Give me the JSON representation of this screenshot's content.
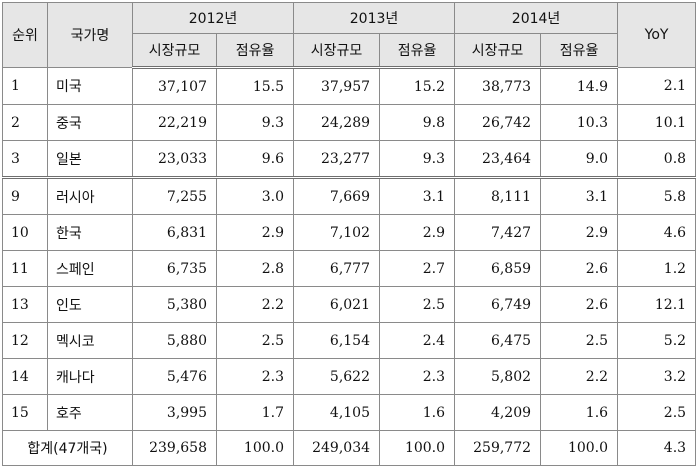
{
  "headers": {
    "rank": "순위",
    "country": "국가명",
    "years": [
      "2012년",
      "2013년",
      "2014년"
    ],
    "market_size": "시장규모",
    "share": "점유율",
    "yoy": "YoY"
  },
  "rows": [
    {
      "rank": "1",
      "country": "미국",
      "v2012": "37,107",
      "s2012": "15.5",
      "v2013": "37,957",
      "s2013": "15.2",
      "v2014": "38,773",
      "s2014": "14.9",
      "yoy": "2.1"
    },
    {
      "rank": "2",
      "country": "중국",
      "v2012": "22,219",
      "s2012": "9.3",
      "v2013": "24,289",
      "s2013": "9.8",
      "v2014": "26,742",
      "s2014": "10.3",
      "yoy": "10.1"
    },
    {
      "rank": "3",
      "country": "일본",
      "v2012": "23,033",
      "s2012": "9.6",
      "v2013": "23,277",
      "s2013": "9.3",
      "v2014": "23,464",
      "s2014": "9.0",
      "yoy": "0.8"
    },
    {
      "rank": "9",
      "country": "러시아",
      "v2012": "7,255",
      "s2012": "3.0",
      "v2013": "7,669",
      "s2013": "3.1",
      "v2014": "8,111",
      "s2014": "3.1",
      "yoy": "5.8"
    },
    {
      "rank": "10",
      "country": "한국",
      "v2012": "6,831",
      "s2012": "2.9",
      "v2013": "7,102",
      "s2013": "2.9",
      "v2014": "7,427",
      "s2014": "2.9",
      "yoy": "4.6"
    },
    {
      "rank": "11",
      "country": "스페인",
      "v2012": "6,735",
      "s2012": "2.8",
      "v2013": "6,777",
      "s2013": "2.7",
      "v2014": "6,859",
      "s2014": "2.6",
      "yoy": "1.2"
    },
    {
      "rank": "13",
      "country": "인도",
      "v2012": "5,380",
      "s2012": "2.2",
      "v2013": "6,021",
      "s2013": "2.5",
      "v2014": "6,749",
      "s2014": "2.6",
      "yoy": "12.1"
    },
    {
      "rank": "12",
      "country": "멕시코",
      "v2012": "5,880",
      "s2012": "2.5",
      "v2013": "6,154",
      "s2013": "2.4",
      "v2014": "6,475",
      "s2014": "2.5",
      "yoy": "5.2"
    },
    {
      "rank": "14",
      "country": "캐나다",
      "v2012": "5,476",
      "s2012": "2.3",
      "v2013": "5,622",
      "s2013": "2.3",
      "v2014": "5,802",
      "s2014": "2.2",
      "yoy": "3.2"
    },
    {
      "rank": "15",
      "country": "호주",
      "v2012": "3,995",
      "s2012": "1.7",
      "v2013": "4,105",
      "s2013": "1.6",
      "v2014": "4,209",
      "s2014": "1.6",
      "yoy": "2.5"
    }
  ],
  "total": {
    "label": "합계(47개국)",
    "v2012": "239,658",
    "s2012": "100.0",
    "v2013": "249,034",
    "s2013": "100.0",
    "v2014": "259,772",
    "s2014": "100.0",
    "yoy": "4.3"
  }
}
